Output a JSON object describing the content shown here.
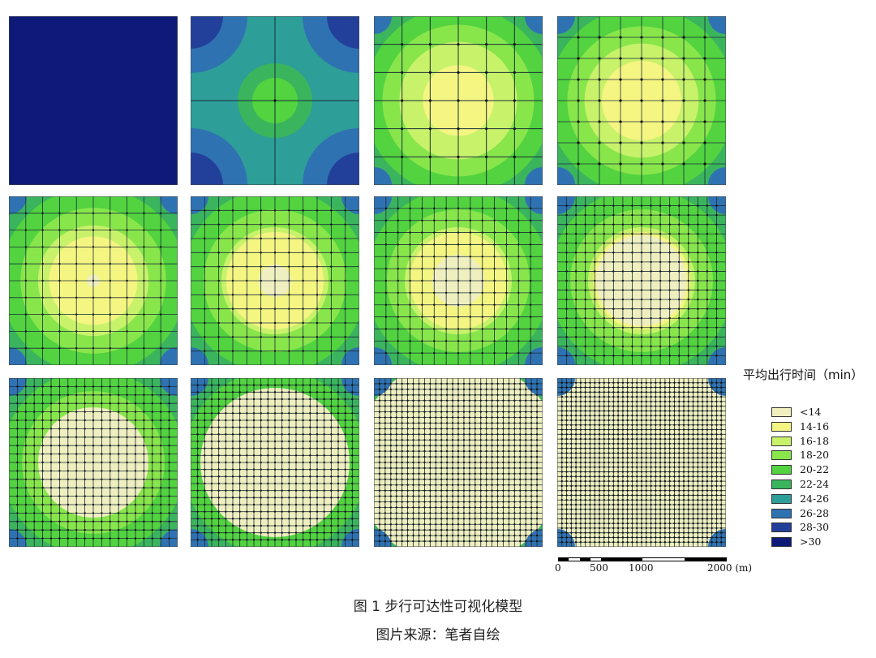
{
  "panels": [
    {
      "grid": 0
    },
    {
      "grid": 1
    },
    {
      "grid": 2
    },
    {
      "grid": 3
    },
    {
      "grid": 4
    },
    {
      "grid": 5
    },
    {
      "grid": 6
    },
    {
      "grid": 7
    },
    {
      "grid": 8
    },
    {
      "grid": 9
    },
    {
      "grid": 10
    },
    {
      "grid": 11
    }
  ],
  "legend": {
    "title": "平均出行时间（min）",
    "items": [
      {
        "label": "<14",
        "color": "#efefc0"
      },
      {
        "label": "14-16",
        "color": "#f5f582"
      },
      {
        "label": "16-18",
        "color": "#c9f26b"
      },
      {
        "label": "18-20",
        "color": "#88e64b"
      },
      {
        "label": "20-22",
        "color": "#52d33f"
      },
      {
        "label": "22-24",
        "color": "#3bb45e"
      },
      {
        "label": "24-26",
        "color": "#2e9e98"
      },
      {
        "label": "26-28",
        "color": "#2f72b2"
      },
      {
        "label": "28-30",
        "color": "#22409a"
      },
      {
        "label": ">30",
        "color": "#0e1a78"
      }
    ]
  },
  "scale": {
    "labels": [
      "0",
      "500",
      "1000",
      "2000 (m)"
    ]
  },
  "caption": {
    "title": "图 1  步行可达性可视化模型",
    "source": "图片来源：笔者自绘"
  }
}
